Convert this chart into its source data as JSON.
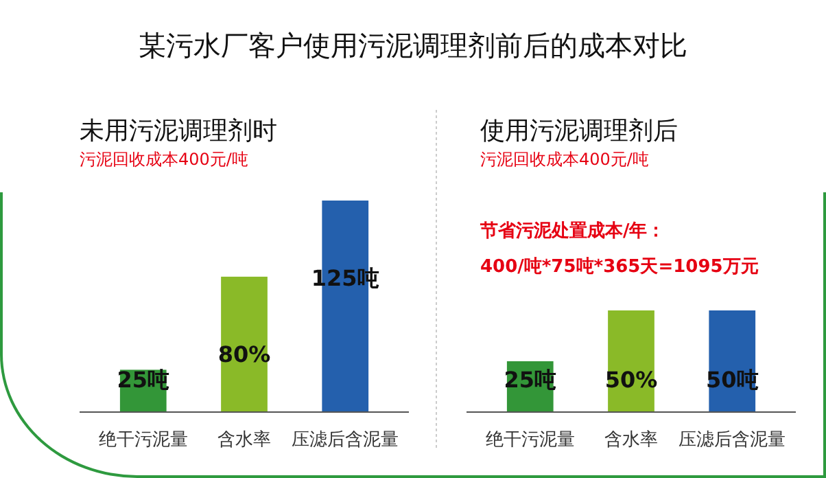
{
  "chart_data": [
    {
      "type": "other",
      "title": "某污水厂客户使用污泥调理剂前后的成本对比"
    },
    {
      "type": "bar",
      "title": "未用污泥调理剂时",
      "subtitle": "污泥回收成本400元/吨",
      "categories": [
        "绝干污泥量",
        "含水率",
        "压滤后含泥量"
      ],
      "values": [
        25,
        80,
        125
      ],
      "colors": [
        "#339638",
        "#8aba28",
        "#2460ad"
      ],
      "value_labels": [
        "25吨",
        "80%",
        "125吨"
      ]
    },
    {
      "type": "bar",
      "title": "使用污泥调理剂后",
      "subtitle": "污泥回收成本400元/吨",
      "categories": [
        "绝干污泥量",
        "含水率",
        "压滤后含泥量"
      ],
      "values": [
        25,
        50,
        50
      ],
      "colors": [
        "#339638",
        "#8aba28",
        "#2460ad"
      ],
      "value_labels": [
        "25吨",
        "50%",
        "50吨"
      ],
      "annotations": [
        "节省污泥处置成本/年：",
        "400/吨*75吨*365天=1095万元"
      ]
    }
  ]
}
